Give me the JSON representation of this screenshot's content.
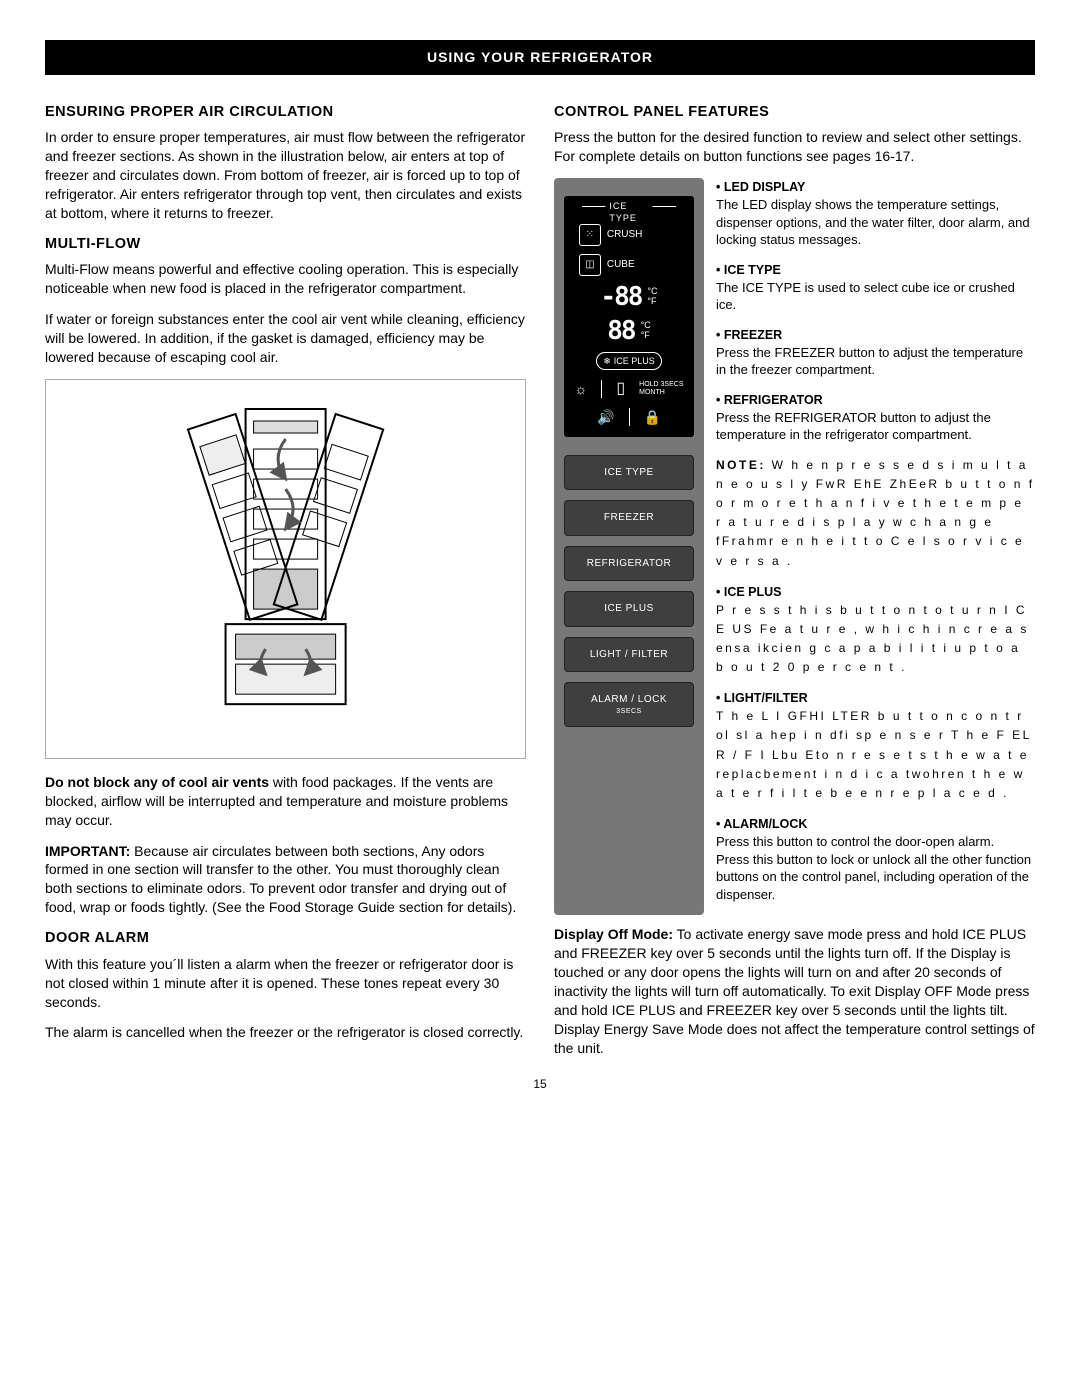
{
  "banner": "USING YOUR REFRIGERATOR",
  "left": {
    "air": {
      "heading": "ENSURING PROPER AIR CIRCULATION",
      "p1": "In order to ensure proper temperatures, air must flow between the refrigerator and freezer sections. As shown in the illustration below, air enters at top of freezer and circulates down. From bottom of freezer, air is forced up to top of refrigerator. Air enters refrigerator through top vent, then circulates and exists at bottom, where it returns to freezer."
    },
    "multiflow": {
      "heading": "MULTI-FLOW",
      "p1": "Multi-Flow means powerful and effective cooling operation. This is especially noticeable when new food is placed in the refrigerator compartment.",
      "p2": "If water or foreign substances enter the cool air vent while cleaning, efficiency will be lowered. In addition, if the gasket is damaged, efficiency may be lowered because of escaping cool air."
    },
    "vents": {
      "bold": "Do not block any of cool air vents",
      "rest": " with food packages. If the vents are blocked, airflow will be interrupted and temperature and moisture problems may occur."
    },
    "important": {
      "bold": "IMPORTANT:",
      "rest": " Because air circulates between both sections, Any odors formed in one section will transfer to the other. You must thoroughly clean both sections to eliminate odors. To prevent odor transfer and drying out of food, wrap or foods tightly. (See the Food Storage Guide section for details)."
    },
    "door_alarm": {
      "heading": "DOOR ALARM",
      "p1": "With this feature you´ll listen a alarm when the freezer or refrigerator door is not closed within 1 minute after it is opened. These tones repeat every 30 seconds.",
      "p2": "The alarm is cancelled when the freezer or the refrigerator is closed correctly."
    }
  },
  "right": {
    "heading": "CONTROL PANEL FEATURES",
    "intro": "Press the button for the desired function to review and select other settings. For complete details on button functions see pages 16-17.",
    "panel": {
      "ice_type_label": "ICE TYPE",
      "crush": "CRUSH",
      "cube": "CUBE",
      "seg1": "-88",
      "seg2": "88",
      "unit_c": "°C",
      "unit_f": "°F",
      "ice_plus_pill": "ICE PLUS",
      "hold_text": "HOLD 3SECS",
      "month": "MONTH",
      "buttons": [
        {
          "label": "ICE TYPE",
          "sub": ""
        },
        {
          "label": "FREEZER",
          "sub": ""
        },
        {
          "label": "REFRIGERATOR",
          "sub": ""
        },
        {
          "label": "ICE PLUS",
          "sub": ""
        },
        {
          "label": "LIGHT /  FILTER",
          "sub": ""
        },
        {
          "label": "ALARM / LOCK",
          "sub": "3SECS"
        }
      ],
      "colors": {
        "panel_bg": "#777777",
        "display_bg": "#000000",
        "btn_bg": "#3f3f3f"
      }
    },
    "features": {
      "led": {
        "label": "LED DISPLAY",
        "text": "The LED display shows the temperature settings, dispenser options, and the water filter, door alarm, and locking status messages."
      },
      "icetype": {
        "label": "ICE TYPE",
        "text": "The ICE TYPE is used to select cube ice or crushed ice."
      },
      "freezer": {
        "label": "FREEZER",
        "text": "Press the FREEZER button to adjust the temperature in the freezer compartment."
      },
      "refrigerator": {
        "label": "REFRIGERATOR",
        "text": "Press the REFRIGERATOR button to adjust the temperature in the refrigerator compartment."
      },
      "note_bold": "NOTE:",
      "note_text": " W h e n   p r e s s e d  s i m u l t a n e o u s l y  FwR EhE ZhEeR  b u t t o n   f o r   m o r e   t h a n   f i v e  t h e   t e m p e r a t u r e   d i s p l a y   w  c h a n g e  fFrahmr e n h e i t   t o   C e l s  o r   v i c e   v e r s a .",
      "iceplus": {
        "label": "ICE PLUS",
        "text": "P r e s s   t h i s   b u t t o n   t o   t u r n  I C E   US Fe a t u r e ,   w h i c h   i n c r e a s ensa ikcien g   c a p a b i l i t i  u p   t o   a b o u t   2 0   p e r c e n t ."
      },
      "light": {
        "label": "LIGHT/FILTER",
        "text": "T h e   L I GFHI LTER  b u t t o n  c o n t r ol sl a hep   i n  dfi sp e n s e r  T h e   F EL R / F I Lbu Eto n   r e s e t s  t h e   w a t e replacbement  i n d i c a twohren   t h e   w a t e r   f i l t e   b e e n   r e p l a c e d ."
      },
      "alarm": {
        "label": "ALARM/LOCK",
        "text": "Press this button to control the door-open alarm.\nPress this button to lock or unlock all the other function buttons on the control panel, including operation of the dispenser."
      }
    },
    "display_off": {
      "bold": "Display Off Mode:",
      "rest": " To activate energy save mode press and hold ICE PLUS and FREEZER key over 5 seconds until the lights turn off. If the Display is touched or any door opens the lights will turn on and after 20 seconds of inactivity the lights will turn off automatically. To exit Display OFF Mode press and hold ICE PLUS and FREEZER key over 5 seconds until the lights tilt. Display Energy Save Mode does not affect the temperature control settings of the unit."
    }
  },
  "page_number": "15"
}
